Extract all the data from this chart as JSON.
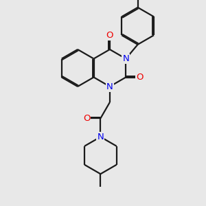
{
  "bg_color": "#e8e8e8",
  "bond_color": "#1a1a1a",
  "N_color": "#0000ee",
  "O_color": "#ee0000",
  "line_width": 1.6,
  "dbo": 0.07,
  "font_size": 9.5,
  "xlim": [
    0,
    10
  ],
  "ylim": [
    0,
    10
  ]
}
